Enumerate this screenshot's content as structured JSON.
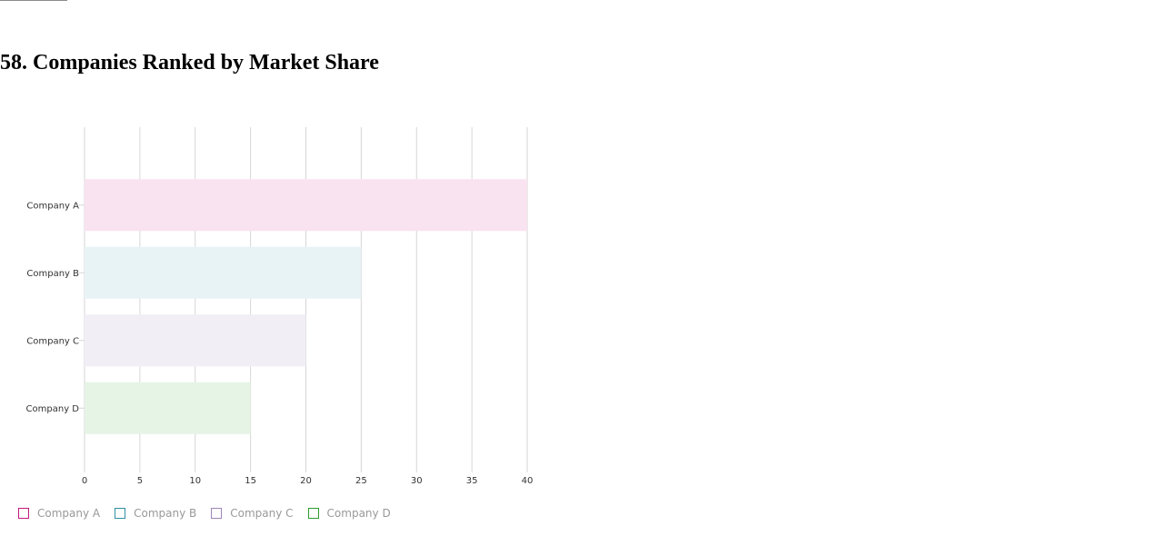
{
  "page": {
    "title": "58. Companies Ranked by Market Share"
  },
  "chart_data": {
    "type": "bar",
    "orientation": "horizontal",
    "categories": [
      "Company A",
      "Company B",
      "Company C",
      "Company D"
    ],
    "values": [
      40,
      25,
      20,
      15
    ],
    "xlim": [
      0,
      40
    ],
    "xticks": [
      "0",
      "5",
      "10",
      "15",
      "20",
      "25",
      "30",
      "35",
      "40"
    ],
    "grid": true,
    "legend_position": "bottom-left",
    "colors": {
      "bar_fills": [
        "#f9e3f0",
        "#e8f3f6",
        "#f2eef6",
        "#e5f4e5"
      ],
      "legend_borders": [
        "#c2187e",
        "#2f8fa3",
        "#9c86b8",
        "#2e9b2e"
      ],
      "grid": "#d6d6d6"
    }
  },
  "legend": {
    "items": [
      {
        "label": "Company A"
      },
      {
        "label": "Company B"
      },
      {
        "label": "Company C"
      },
      {
        "label": "Company D"
      }
    ]
  }
}
